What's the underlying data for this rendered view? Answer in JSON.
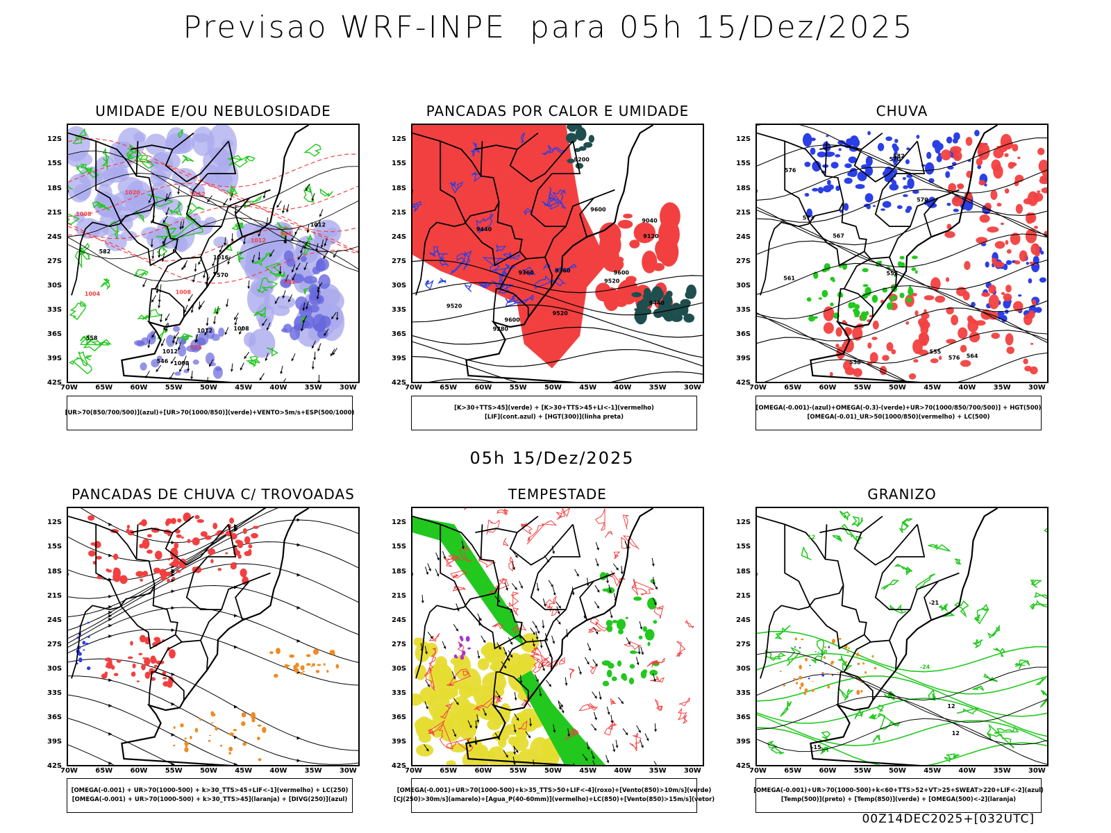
{
  "header": {
    "title": "Previsao WRF-INPE  para 05h 15/Dez/2025"
  },
  "middle_title": "05h 15/Dez/2025",
  "footer_stamp": "00Z14DEC2025+[032UTC]",
  "axes": {
    "lat_labels": [
      "12S",
      "15S",
      "18S",
      "21S",
      "24S",
      "27S",
      "30S",
      "33S",
      "36S",
      "39S",
      "42S"
    ],
    "lon_labels": [
      "70W",
      "65W",
      "60W",
      "55W",
      "50W",
      "45W",
      "40W",
      "35W",
      "30W"
    ]
  },
  "colors": {
    "red": "#f24040",
    "blue": "#2b3fe6",
    "green": "#22c81e",
    "lavender": "#aaaaee",
    "dark_teal": "#1e4e4e",
    "yellow": "#e6dc32",
    "orange": "#f08a22",
    "purple": "#aa33cc"
  },
  "panels": [
    {
      "title": "UMIDADE E/OU NEBULOSIDADE",
      "legend": [
        "[UR>70(850/700/500)](azul)+[UR>70(1000/850)](verde)+VENTO>5m/s+ESP(500/1000)"
      ],
      "labels": [
        "1012",
        "1012",
        "1008",
        "1012",
        "1008",
        "1004",
        "1012",
        "1008",
        "1012",
        "1020",
        "1016",
        "1008",
        "570",
        "576",
        "582",
        "564",
        "558",
        "552",
        "546"
      ]
    },
    {
      "title": "PANCADAS POR CALOR E UMIDADE",
      "legend": [
        "[K>30+TTS>45](verde) + [K>30+TTS>45+LI<-1](vermelho)",
        "[LIF](cont.azul) + [HGT(300)](linha preta)"
      ],
      "labels": [
        "9600",
        "9520",
        "9440",
        "9520",
        "9600",
        "9360",
        "9280",
        "9200",
        "9120",
        "9040",
        "9440",
        "9360",
        "9520",
        "9600"
      ]
    },
    {
      "title": "CHUVA",
      "legend": [
        "[OMEGA(-0.001)-(azul)+OMEGA(-0.3)-(verde)+UR>70(1000/850/700/500)] + HGT(500)",
        "[OMEGA(-0.01)_UR>50(1000/850)(vermelho) + LC(500)"
      ],
      "labels": [
        "582",
        "576",
        "570",
        "567",
        "564",
        "561",
        "558",
        "555",
        "552",
        "576",
        "570",
        "573"
      ]
    },
    {
      "title": "PANCADAS DE CHUVA C/ TROVOADAS",
      "legend": [
        "[OMEGA(-0.001) + UR>70(1000-500) + k>30_TTS>45+LIF<-1](vermelho) + LC(250)",
        "[OMEGA(-0.001) + UR>70(1000-500) + k>30_TTS>45](laranja) + [DIVG(250)](azul)"
      ],
      "labels": []
    },
    {
      "title": "TEMPESTADE",
      "legend": [
        "[OMEGA(-0.001)+UR>70(1000-500)+k>35_TTS>50+LIF<-4](roxo)+[Vento(850)>10m/s](verde)",
        "[CJ(250)>30m/s](amarelo)+[Agua_P(40-60mm)](vermelho)+LC(850)+[Vento(850)>15m/s](vetor)"
      ],
      "labels": []
    },
    {
      "title": "GRANIZO",
      "legend": [
        "[OMEGA(-0.001)+UR>70(1000-500)+k<60+TTS>52+VT>25+SWEAT>220+LIF<-2](azul)",
        "[Temp(500)](preto) + [Temp(850)](verde) + [OMEGA(500)<-2](laranja)"
      ],
      "labels": [
        "-15",
        "-18",
        "-21",
        "-24",
        "12",
        "12",
        "12"
      ]
    }
  ]
}
